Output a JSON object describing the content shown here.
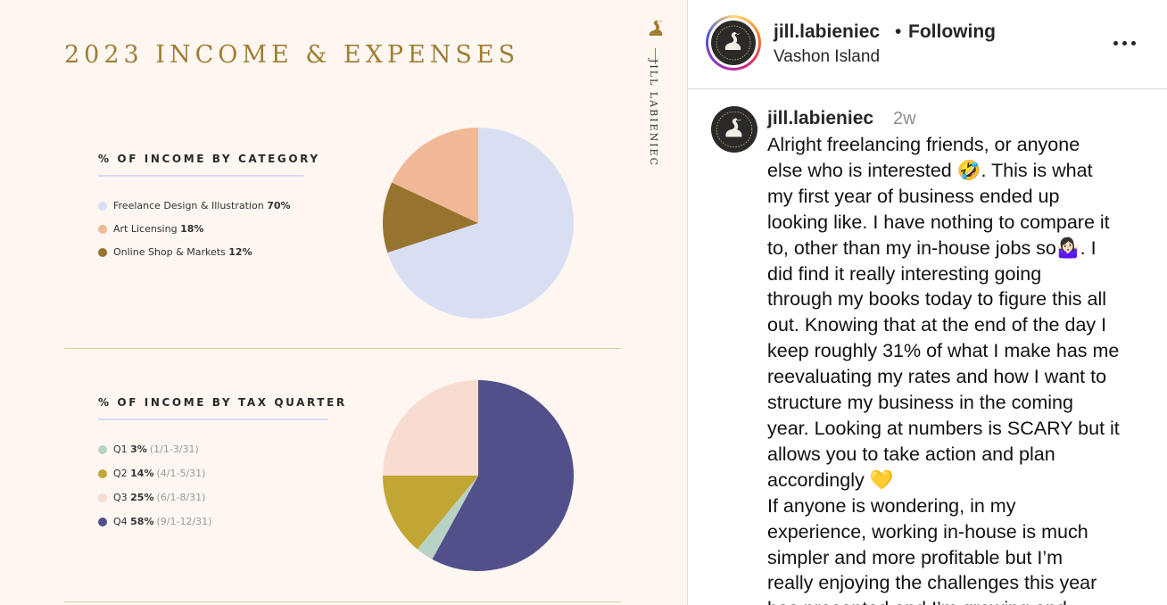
{
  "image": {
    "title": "2023 INCOME & EXPENSES",
    "brand": "JILL LABIENIEC",
    "section1": {
      "heading": "% OF INCOME BY CATEGORY",
      "legend": [
        {
          "label": "Freelance Design & Illustration",
          "pct": "70%",
          "color": "#d9dff3"
        },
        {
          "label": "Art Licensing",
          "pct": "18%",
          "color": "#f0b896"
        },
        {
          "label": "Online Shop & Markets",
          "pct": "12%",
          "color": "#977330"
        }
      ]
    },
    "section2": {
      "heading": "% OF INCOME BY TAX QUARTER",
      "legend": [
        {
          "label": "Q1",
          "pct": "3%",
          "range": "(1/1-3/31)",
          "color": "#b9d2c6"
        },
        {
          "label": "Q2",
          "pct": "14%",
          "range": "(4/1-5/31)",
          "color": "#c2a633"
        },
        {
          "label": "Q3",
          "pct": "25%",
          "range": "(6/1-8/31)",
          "color": "#f8dcd2"
        },
        {
          "label": "Q4",
          "pct": "58%",
          "range": "(9/1-12/31)",
          "color": "#52508a"
        }
      ]
    }
  },
  "chart_data": [
    {
      "type": "pie",
      "title": "% OF INCOME BY CATEGORY",
      "categories": [
        "Freelance Design & Illustration",
        "Art Licensing",
        "Online Shop & Markets"
      ],
      "values": [
        70,
        18,
        12
      ],
      "colors": [
        "#d9dff3",
        "#f0b896",
        "#977330"
      ],
      "order": [
        "Freelance Design & Illustration",
        "Online Shop & Markets",
        "Art Licensing"
      ],
      "legend": "left"
    },
    {
      "type": "pie",
      "title": "% OF INCOME BY TAX QUARTER",
      "categories": [
        "Q1",
        "Q2",
        "Q3",
        "Q4"
      ],
      "values": [
        3,
        14,
        25,
        58
      ],
      "colors": [
        "#b9d2c6",
        "#c2a633",
        "#f8dcd2",
        "#52508a"
      ],
      "order": [
        "Q4",
        "Q1",
        "Q2",
        "Q3"
      ],
      "legend": "left"
    }
  ],
  "post": {
    "username": "jill.labieniec",
    "separator": "•",
    "follow_status": "Following",
    "location": "Vashon Island",
    "more_icon": "more-horizontal-icon",
    "caption": {
      "username": "jill.labieniec",
      "time": "2w",
      "lines": [
        "Alright freelancing friends, or anyone",
        "else who is interested 🤣. This is what",
        "my first year of business ended up",
        "looking like. I have nothing to compare it",
        "to, other than my in-house jobs so🤷🏻‍♀️. I",
        "did find it really interesting going",
        "through my books today to figure this all",
        "out. Knowing that at the end of the day I",
        "keep roughly 31% of what I make has me",
        "reevaluating my rates and how I want to",
        "structure my business in the coming",
        "year. Looking at numbers is SCARY but it",
        "allows you to take action and plan",
        "accordingly 💛",
        "If anyone is wondering, in my",
        "experience, working in-house is much",
        "simpler and more profitable but I’m",
        "really enjoying the challenges this year",
        "has presented and I’m growing and"
      ]
    }
  }
}
